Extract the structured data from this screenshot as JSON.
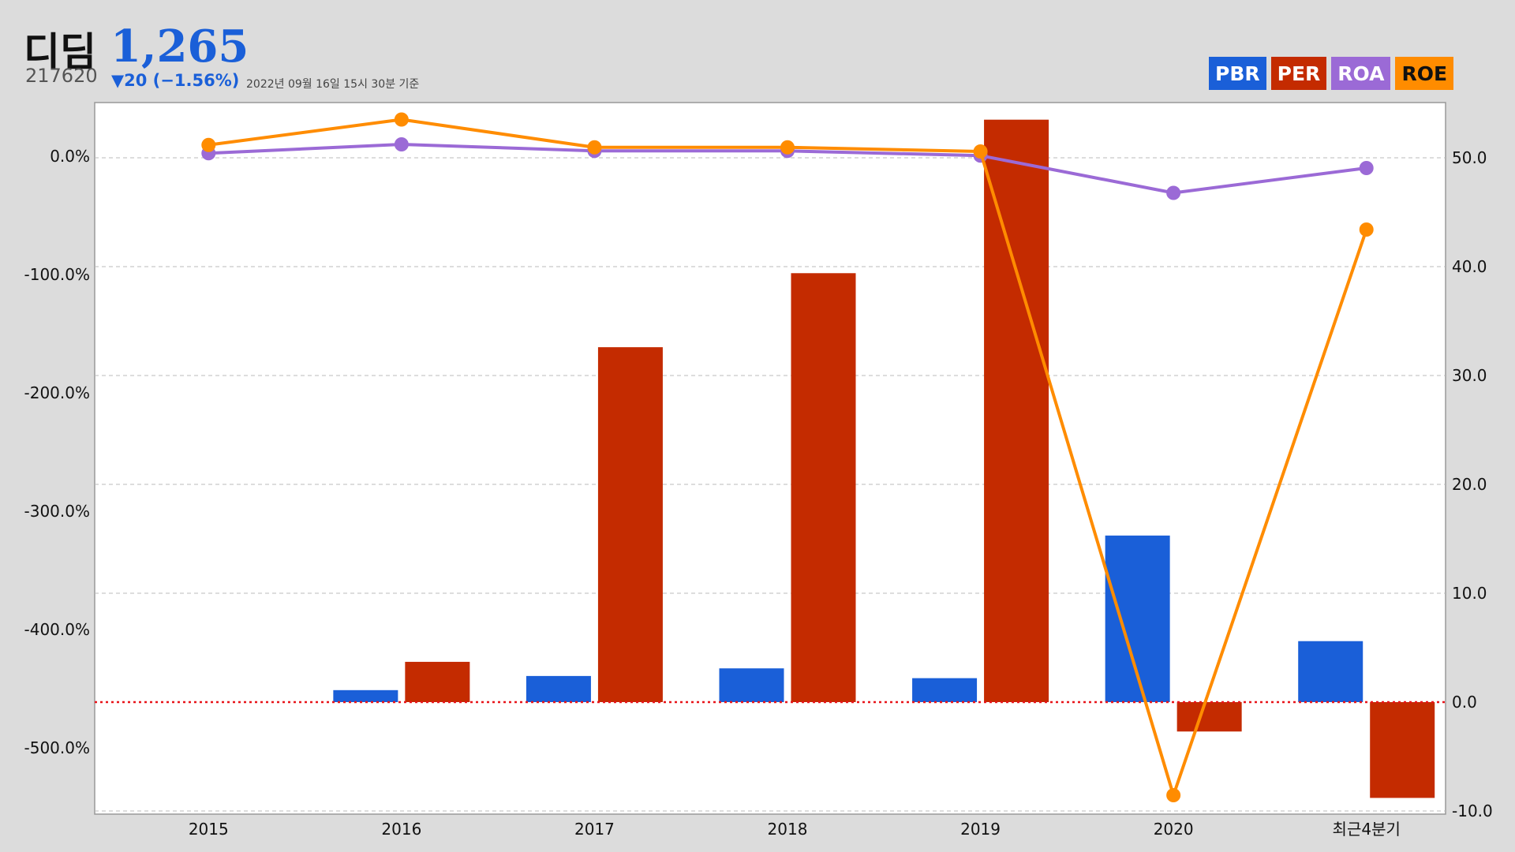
{
  "header": {
    "name": "디딤",
    "price": "1,265",
    "code": "217620",
    "change": "▼20 (−1.56%)",
    "asof": "2022년 09월 16일 15시 30분 기준"
  },
  "colors": {
    "PBR": "#1a5fd8",
    "PER": "#c42b00",
    "ROA": "#9b6ad6",
    "ROE": "#ff8c00"
  },
  "legend": [
    {
      "key": "PBR",
      "label": "PBR"
    },
    {
      "key": "PER",
      "label": "PER"
    },
    {
      "key": "ROA",
      "label": "ROA"
    },
    {
      "key": "ROE",
      "label": "ROE"
    }
  ],
  "chart_data": {
    "type": "bar",
    "categories": [
      "2015",
      "2016",
      "2017",
      "2018",
      "2019",
      "2020",
      "최근4분기"
    ],
    "left_axis": {
      "ticks": [
        "0.0%",
        "-100.0%",
        "-200.0%",
        "-300.0%",
        "-400.0%",
        "-500.0%"
      ],
      "ylim": [
        -550,
        46
      ]
    },
    "right_axis": {
      "ticks": [
        "50.0",
        "40.0",
        "30.0",
        "20.0",
        "10.0",
        "0.0",
        "-10.0"
      ],
      "ylim": [
        -10,
        55
      ]
    },
    "grid": true,
    "legend_position": "top-right",
    "zero_line": "red-dotted",
    "series": [
      {
        "name": "PBR",
        "type": "bar",
        "axis": "right",
        "values": [
          0,
          1.1,
          2.4,
          3.1,
          2.2,
          15.3,
          5.6
        ]
      },
      {
        "name": "PER",
        "type": "bar",
        "axis": "right",
        "values": [
          0,
          3.7,
          32.6,
          39.4,
          53.5,
          -2.7,
          -8.8
        ]
      },
      {
        "name": "ROA",
        "type": "line",
        "axis": "left",
        "values": [
          2.5,
          10.0,
          4.5,
          4.5,
          0.5,
          -31.0,
          -10.0
        ]
      },
      {
        "name": "ROE",
        "type": "line",
        "axis": "left",
        "values": [
          9.5,
          31.0,
          7.5,
          7.5,
          4.0,
          -540.0,
          -62.0
        ]
      }
    ]
  }
}
